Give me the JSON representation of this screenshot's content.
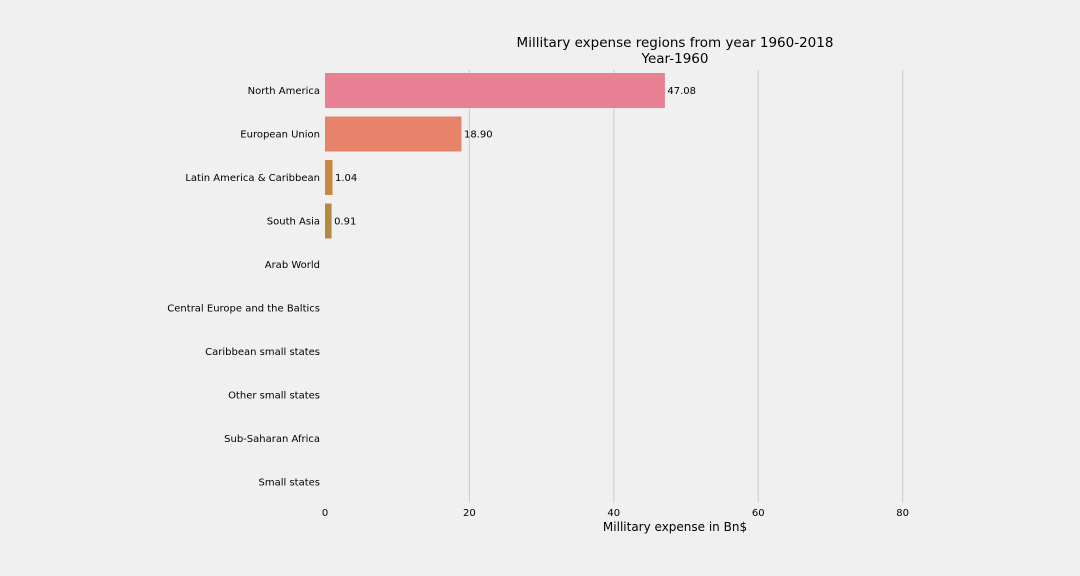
{
  "chart_data": {
    "type": "bar",
    "orientation": "horizontal",
    "title": "Millitary expense regions from year 1960-2018",
    "subtitle": "Year-1960",
    "xlabel": "Millitary expense in Bn$",
    "ylabel": "",
    "xlim": [
      0,
      100
    ],
    "xticks": [
      0,
      20,
      40,
      60,
      80
    ],
    "grid": "vertical",
    "legend": "none",
    "categories": [
      "North America",
      "European Union",
      "Latin America & Caribbean",
      "South Asia",
      "Arab World",
      "Central Europe and the Baltics",
      "Caribbean small states",
      "Other small states",
      "Sub-Saharan Africa",
      "Small states"
    ],
    "values": [
      47.08,
      18.9,
      1.04,
      0.91,
      0,
      0,
      0,
      0,
      0,
      0
    ],
    "value_labels": [
      "47.08",
      "18.90",
      "1.04",
      "0.91",
      "",
      "",
      "",
      "",
      "",
      ""
    ],
    "colors": [
      "#e88194",
      "#e6836a",
      "#c9883f",
      "#b38b40",
      "#a09040",
      "#8b9440",
      "#70993f",
      "#4a9e45",
      "#3fa06a",
      "#3fa08a"
    ]
  }
}
